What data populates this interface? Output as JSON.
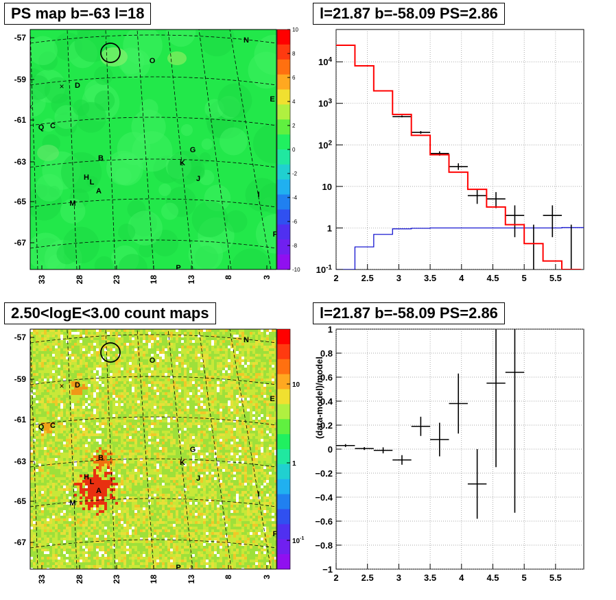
{
  "panels": {
    "ps_map_title": "PS map b=-63 l=18",
    "spectrum_title": "l=21.87 b=-58.09 PS=2.86",
    "count_map_title": "2.50<logE<3.00 count maps",
    "residual_title": "l=21.87 b=-58.09 PS=2.86"
  },
  "colors": {
    "data": "#000000",
    "model": "#ff0000",
    "background": "#0000cc",
    "map_green": "#22e84a"
  },
  "chart_data": [
    {
      "type": "heatmap",
      "name": "ps_map",
      "lat_ticks": [
        "-57",
        "-59",
        "-61",
        "-63",
        "-65",
        "-67"
      ],
      "lon_ticks": [
        "33",
        "28",
        "23",
        "18",
        "13",
        "8",
        "3"
      ],
      "colorbar_ticks": [
        "10",
        "8",
        "6",
        "4",
        "2",
        "0",
        "-2",
        "-4",
        "-6",
        "-8",
        "-10"
      ],
      "zlim": [
        -10,
        10
      ],
      "sources": [
        "N",
        "O",
        "D",
        "E",
        "Q",
        "C",
        "G",
        "B",
        "K",
        "H",
        "L",
        "J",
        "A",
        "I",
        "M",
        "F",
        "P"
      ]
    },
    {
      "type": "line",
      "name": "spectrum",
      "x_ticks": [
        "2",
        "2.5",
        "3",
        "3.5",
        "4",
        "4.5",
        "5",
        "5.5"
      ],
      "y_ticks": [
        "10^-1",
        "1",
        "10",
        "10^2",
        "10^3",
        "10^4"
      ],
      "xlim": [
        2,
        5.95
      ],
      "ylim": [
        0.1,
        60000
      ],
      "yscale": "log",
      "grid": true,
      "model_step": {
        "edges": [
          2,
          2.3,
          2.6,
          2.9,
          3.2,
          3.5,
          3.8,
          4.1,
          4.4,
          4.7,
          5.0,
          5.3,
          5.6,
          5.9
        ],
        "values": [
          25000,
          8000,
          2000,
          540,
          170,
          58,
          22,
          8.5,
          3.2,
          1.2,
          0.42,
          0.16,
          0.07
        ]
      },
      "background_step": {
        "edges": [
          2,
          2.3,
          2.6,
          2.9,
          3.2,
          3.5,
          3.8,
          4.1,
          4.4,
          4.7,
          5.0,
          5.3,
          5.6,
          5.95
        ],
        "values": [
          0.1,
          0.35,
          0.7,
          0.95,
          0.98,
          1.0,
          1.0,
          1.0,
          1.0,
          1.0,
          1.0,
          1.0,
          1.02
        ]
      },
      "data_points": [
        {
          "x": 2.15,
          "y": 25000,
          "ylo": 24800,
          "yhi": 25200
        },
        {
          "x": 2.45,
          "y": 8000,
          "ylo": 7900,
          "yhi": 8100
        },
        {
          "x": 2.75,
          "y": 2000,
          "ylo": 1950,
          "yhi": 2050
        },
        {
          "x": 3.05,
          "y": 480,
          "ylo": 460,
          "yhi": 510
        },
        {
          "x": 3.35,
          "y": 200,
          "ylo": 185,
          "yhi": 215
        },
        {
          "x": 3.65,
          "y": 62,
          "ylo": 55,
          "yhi": 70
        },
        {
          "x": 3.95,
          "y": 30,
          "ylo": 25,
          "yhi": 36
        },
        {
          "x": 4.25,
          "y": 6.0,
          "ylo": 3.8,
          "yhi": 8.5
        },
        {
          "x": 4.55,
          "y": 5.0,
          "ylo": 3.0,
          "yhi": 7.3
        },
        {
          "x": 4.85,
          "y": 2.0,
          "ylo": 0.6,
          "yhi": 3.5
        },
        {
          "x": 5.15,
          "y": 0.0,
          "ylo": 0.1,
          "yhi": 1.2
        },
        {
          "x": 5.45,
          "y": 2.0,
          "ylo": 0.6,
          "yhi": 3.5
        },
        {
          "x": 5.75,
          "y": 0.0,
          "ylo": 0.1,
          "yhi": 1.2
        }
      ]
    },
    {
      "type": "heatmap",
      "name": "count_map",
      "lat_ticks": [
        "-57",
        "-59",
        "-61",
        "-63",
        "-65",
        "-67"
      ],
      "lon_ticks": [
        "33",
        "28",
        "23",
        "18",
        "13",
        "8",
        "3"
      ],
      "colorbar_ticks": [
        "10",
        "1",
        "10^-1"
      ],
      "zscale": "log",
      "sources": [
        "N",
        "O",
        "D",
        "E",
        "Q",
        "C",
        "G",
        "B",
        "K",
        "H",
        "L",
        "J",
        "A",
        "I",
        "M",
        "F",
        "P"
      ]
    },
    {
      "type": "scatter",
      "name": "residuals",
      "ylabel": "(data-model)/model",
      "x_ticks": [
        "2",
        "2.5",
        "3",
        "3.5",
        "4",
        "4.5",
        "5",
        "5.5"
      ],
      "y_ticks": [
        "−1",
        "−0.8",
        "−0.6",
        "−0.4",
        "−0.2",
        "0",
        "0.2",
        "0.4",
        "0.6",
        "0.8",
        "1"
      ],
      "xlim": [
        2,
        5.95
      ],
      "ylim": [
        -1,
        1
      ],
      "grid": true,
      "points": [
        {
          "x": 2.15,
          "y": 0.03,
          "err": 0.012
        },
        {
          "x": 2.45,
          "y": 0.005,
          "err": 0.012
        },
        {
          "x": 2.75,
          "y": -0.01,
          "err": 0.025
        },
        {
          "x": 3.05,
          "y": -0.09,
          "err": 0.04
        },
        {
          "x": 3.35,
          "y": 0.19,
          "err": 0.08
        },
        {
          "x": 3.65,
          "y": 0.08,
          "err": 0.14
        },
        {
          "x": 3.95,
          "y": 0.38,
          "err": 0.25
        },
        {
          "x": 4.25,
          "y": -0.29,
          "err": 0.29
        },
        {
          "x": 4.55,
          "y": 0.55,
          "err": 0.7
        },
        {
          "x": 4.85,
          "y": 0.64,
          "err": 1.17
        }
      ]
    }
  ]
}
